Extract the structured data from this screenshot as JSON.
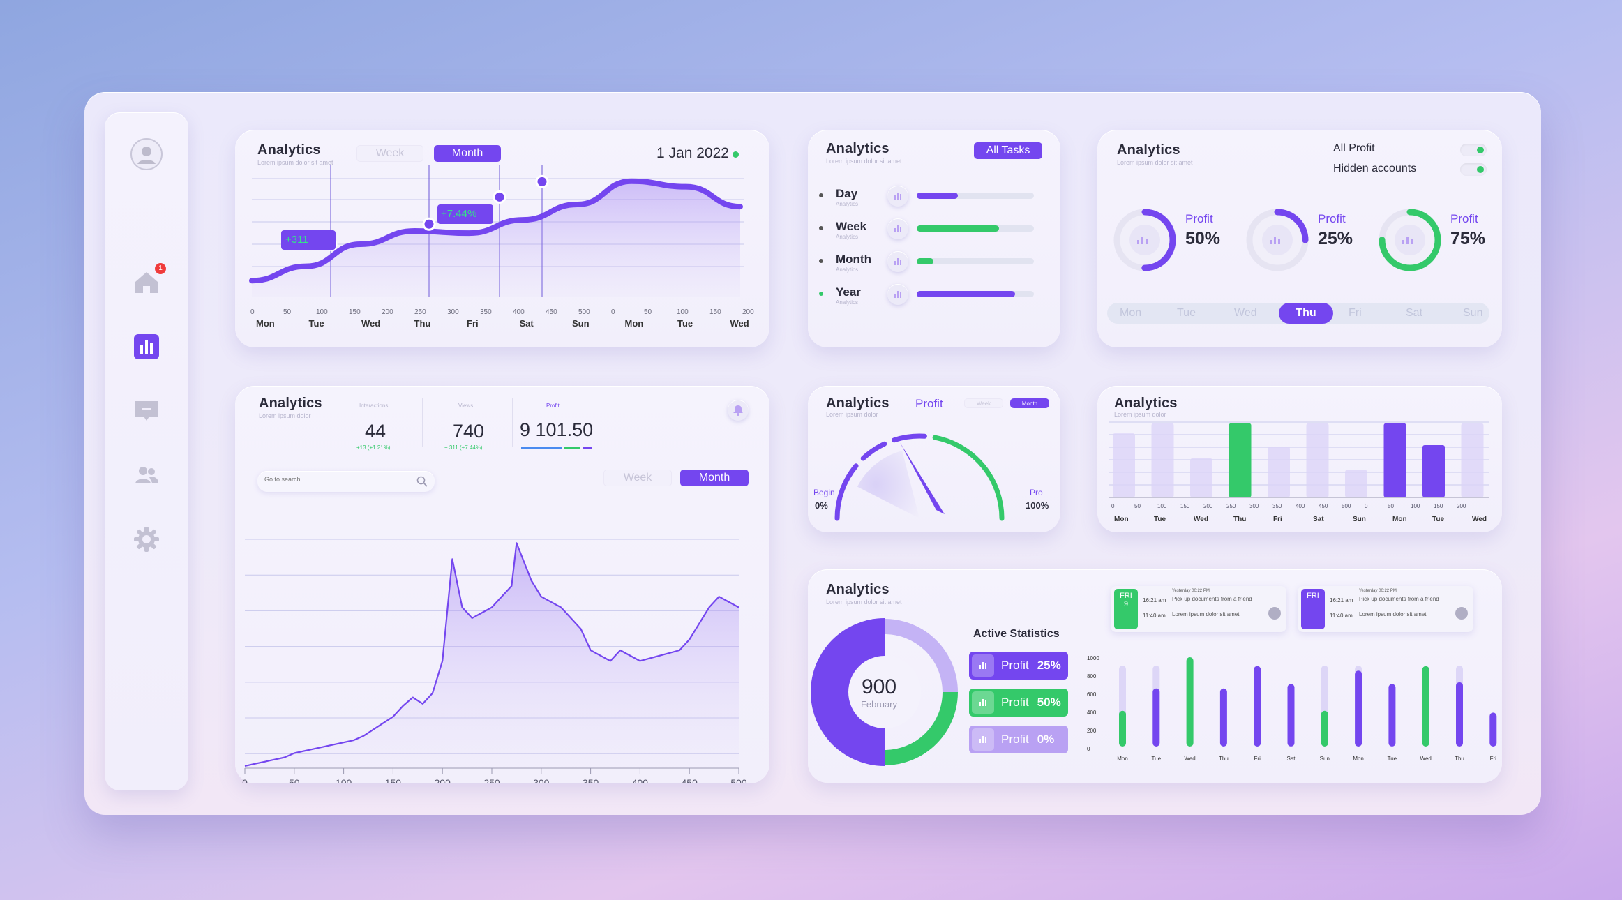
{
  "sidebar": {
    "icons": [
      "user-avatar-icon",
      "home-icon",
      "chart-icon",
      "message-icon",
      "users-icon",
      "gear-icon"
    ],
    "badge": "1",
    "active": "chart-icon"
  },
  "card1": {
    "title": "Analytics",
    "subtitle": "Lorem ipsum dolor sit amet",
    "tab_week": "Week",
    "tab_month": "Month",
    "date": "1 Jan 2022",
    "callout_a": "+311",
    "callout_b": "+7.44%",
    "ticks": [
      "0",
      "50",
      "100",
      "150",
      "200",
      "250",
      "300",
      "350",
      "400",
      "450",
      "500",
      "0",
      "50",
      "100",
      "150",
      "200"
    ],
    "days": [
      "Mon",
      "Tue",
      "Wed",
      "Thu",
      "Fri",
      "Sat",
      "Sun",
      "Mon",
      "Tue",
      "Wed"
    ]
  },
  "card2": {
    "title": "Analytics",
    "subtitle": "Lorem ipsum dolor sit amet",
    "button": "All Tasks",
    "rows": [
      {
        "label": "Day",
        "sub": "Analytics",
        "value": 0.35,
        "color": "#7446ef"
      },
      {
        "label": "Week",
        "sub": "Analytics",
        "value": 0.7,
        "color": "#34c96a"
      },
      {
        "label": "Month",
        "sub": "Analytics",
        "value": 0.14,
        "color": "#34c96a"
      },
      {
        "label": "Year",
        "sub": "Analytics",
        "value": 0.84,
        "color": "#7446ef"
      }
    ]
  },
  "card3": {
    "title": "Analytics",
    "subtitle": "Lorem ipsum dolor sit amet",
    "toggle1": "All Profit",
    "toggle2": "Hidden accounts",
    "rings": [
      {
        "label": "Profit",
        "value": "50%",
        "fraction": 0.5,
        "color": "#7446ef"
      },
      {
        "label": "Profit",
        "value": "25%",
        "fraction": 0.25,
        "color": "#7446ef"
      },
      {
        "label": "Profit",
        "value": "75%",
        "fraction": 0.75,
        "color": "#34c96a"
      }
    ],
    "days": [
      "Mon",
      "Tue",
      "Wed",
      "Thu",
      "Fri",
      "Sat",
      "Sun"
    ],
    "selected": "Thu"
  },
  "card4": {
    "title": "Analytics",
    "subtitle": "Lorem ipsum dolor",
    "interactions_label": "Interactions",
    "interactions": "44",
    "interactions_delta": "+13 (+1.21%)",
    "views_label": "Views",
    "views": "740",
    "views_delta": "+ 311 (+7.44%)",
    "profit_label": "Profit",
    "profit": "9 101.50",
    "search_placeholder": "Go to search",
    "tab_week": "Week",
    "tab_month": "Month",
    "xticks": [
      "0",
      "50",
      "100",
      "150",
      "200",
      "250",
      "300",
      "350",
      "400",
      "450",
      "500"
    ]
  },
  "card5": {
    "title": "Analytics",
    "subtitle": "Lorem ipsum dolor",
    "label": "Profit",
    "tab_week": "Week",
    "tab_month": "Month",
    "begin_label": "Begin",
    "begin_value": "0%",
    "pro_label": "Pro",
    "pro_value": "100%",
    "needle_fraction": 0.42
  },
  "card6": {
    "title": "Analytics",
    "subtitle": "Lorem ipsum dolor",
    "ticks": [
      "0",
      "50",
      "100",
      "150",
      "200",
      "250",
      "300",
      "350",
      "400",
      "450",
      "500",
      "0",
      "50",
      "100",
      "150",
      "200"
    ],
    "days": [
      "Mon",
      "Tue",
      "Wed",
      "Thu",
      "Fri",
      "Sat",
      "Sun",
      "Mon",
      "Tue",
      "Wed"
    ],
    "bars": [
      0.82,
      0.95,
      0.5,
      0.95,
      0.65,
      0.95,
      0.35,
      0.95,
      0.67,
      0.95
    ],
    "highlight": {
      "3": "#34c96a",
      "7": "#7446ef",
      "8": "#7446ef"
    }
  },
  "card7": {
    "title": "Analytics",
    "subtitle": "Lorem ipsum dolor sit amet",
    "donut_value": "900",
    "donut_label": "February",
    "stats_title": "Active Statistics",
    "stats": [
      {
        "label": "Profit",
        "value": "25%",
        "color": "#7446ef"
      },
      {
        "label": "Profit",
        "value": "50%",
        "color": "#34c96a"
      },
      {
        "label": "Profit",
        "value": "0%",
        "color": "#b9a1f3"
      }
    ],
    "notes": [
      {
        "tag": "FRI",
        "num": "9",
        "time1": "16:21 am",
        "time2": "11:40 am",
        "head": "Yesterday 00:22   PM",
        "text1": "Pick up documents from a friend",
        "text2": "Lorem ipsum dolor sit amet",
        "color": "#34c96a"
      },
      {
        "tag": "FRI",
        "num": "",
        "time1": "16:21 am",
        "time2": "11:40 am",
        "head": "Yesterday 00:22   PM",
        "text1": "Pick up documents from a friend",
        "text2": "Lorem ipsum dolor sit amet",
        "color": "#7446ef"
      }
    ],
    "yticks": [
      "1000",
      "800",
      "600",
      "400",
      "200",
      "0"
    ],
    "days": [
      "Mon",
      "Tue",
      "Wed",
      "Thu",
      "Fri",
      "Sat",
      "Sun",
      "Mon",
      "Tue",
      "Wed",
      "Thu",
      "Fri"
    ]
  },
  "chart_data": [
    {
      "type": "line",
      "x": [
        "Mon",
        "Tue",
        "Wed",
        "Thu",
        "Fri",
        "Sat",
        "Sun",
        "Mon",
        "Tue",
        "Wed"
      ],
      "values": [
        15,
        28,
        48,
        60,
        58,
        70,
        84,
        105,
        100,
        82
      ],
      "annotations": [
        "+311",
        "+7.44%"
      ]
    },
    {
      "type": "area",
      "xlabel": "",
      "ylabel": "",
      "xlim": [
        0,
        500
      ],
      "x": [
        0,
        10,
        20,
        30,
        40,
        50,
        70,
        90,
        110,
        120,
        130,
        140,
        150,
        160,
        170,
        180,
        190,
        200,
        210,
        220,
        230,
        240,
        250,
        260,
        270,
        275,
        290,
        300,
        320,
        330,
        340,
        350,
        360,
        370,
        380,
        400,
        420,
        440,
        450,
        460,
        470,
        480,
        490,
        500
      ],
      "y": [
        2,
        4,
        6,
        8,
        10,
        14,
        18,
        22,
        26,
        30,
        36,
        42,
        48,
        58,
        66,
        60,
        70,
        100,
        195,
        150,
        140,
        145,
        150,
        160,
        170,
        210,
        175,
        160,
        150,
        140,
        130,
        110,
        105,
        100,
        110,
        100,
        105,
        110,
        120,
        135,
        150,
        160,
        155,
        150
      ]
    },
    {
      "type": "bar",
      "categories": [
        "Mon",
        "Tue",
        "Wed",
        "Thu",
        "Fri",
        "Sat",
        "Sun",
        "Mon",
        "Tue",
        "Wed"
      ],
      "values": [
        82,
        95,
        50,
        95,
        65,
        95,
        35,
        95,
        67,
        95
      ]
    },
    {
      "type": "bar",
      "categories": [
        "Mon",
        "Tue",
        "Wed",
        "Thu",
        "Fri",
        "Sat",
        "Sun",
        "Mon",
        "Tue",
        "Wed",
        "Thu",
        "Fri"
      ],
      "values": [
        400,
        650,
        1000,
        650,
        900,
        700,
        400,
        850,
        700,
        900,
        720,
        380
      ],
      "ylim": [
        0,
        1000
      ]
    }
  ]
}
